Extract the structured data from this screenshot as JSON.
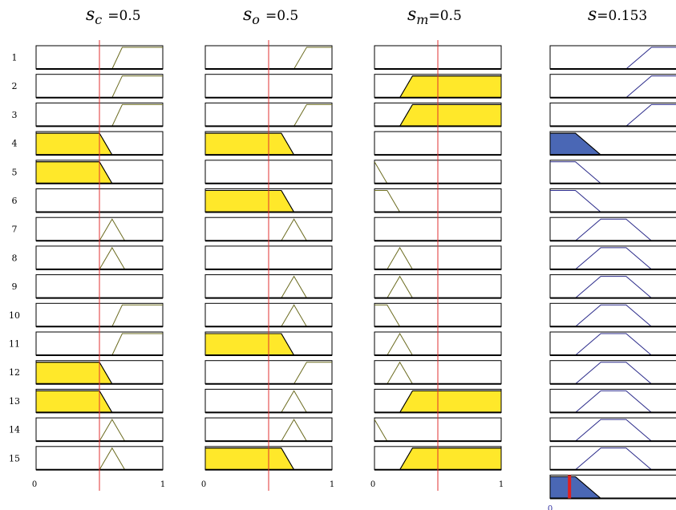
{
  "columns": [
    {
      "var": "s",
      "sub": "c",
      "eq": "=",
      "value": "0.5",
      "axis": [
        "0",
        "1"
      ],
      "axis_color": "#000000",
      "mf_color": "#6b6b1f",
      "fill": "#ffe82a",
      "active": true,
      "input": 0.5,
      "input_color": "#e03030",
      "rules": [
        {
          "shape": "rise",
          "a": 0.6,
          "b": 0.68
        },
        {
          "shape": "rise",
          "a": 0.6,
          "b": 0.68
        },
        {
          "shape": "rise",
          "a": 0.6,
          "b": 0.68
        },
        {
          "shape": "fall",
          "a": 0.5,
          "b": 0.6,
          "filled": true
        },
        {
          "shape": "fall",
          "a": 0.5,
          "b": 0.6,
          "filled": true
        },
        {
          "shape": "none"
        },
        {
          "shape": "tri",
          "a": 0.5,
          "b": 0.6,
          "c": 0.7
        },
        {
          "shape": "tri",
          "a": 0.5,
          "b": 0.6,
          "c": 0.7
        },
        {
          "shape": "none"
        },
        {
          "shape": "rise",
          "a": 0.6,
          "b": 0.68
        },
        {
          "shape": "rise",
          "a": 0.6,
          "b": 0.68
        },
        {
          "shape": "fall",
          "a": 0.5,
          "b": 0.6,
          "filled": true
        },
        {
          "shape": "fall",
          "a": 0.5,
          "b": 0.6,
          "filled": true
        },
        {
          "shape": "tri",
          "a": 0.5,
          "b": 0.6,
          "c": 0.7
        },
        {
          "shape": "tri",
          "a": 0.5,
          "b": 0.6,
          "c": 0.7
        }
      ]
    },
    {
      "var": "s",
      "sub": "o",
      "eq": "=",
      "value": "0.5",
      "axis": [
        "0",
        "1"
      ],
      "axis_color": "#000000",
      "mf_color": "#6b6b1f",
      "fill": "#ffe82a",
      "active": true,
      "input": 0.5,
      "input_color": "#e03030",
      "rules": [
        {
          "shape": "rise",
          "a": 0.7,
          "b": 0.8
        },
        {
          "shape": "none"
        },
        {
          "shape": "rise",
          "a": 0.7,
          "b": 0.8
        },
        {
          "shape": "fall",
          "a": 0.6,
          "b": 0.7,
          "filled": true
        },
        {
          "shape": "none"
        },
        {
          "shape": "fall",
          "a": 0.6,
          "b": 0.7,
          "filled": true
        },
        {
          "shape": "tri",
          "a": 0.6,
          "b": 0.7,
          "c": 0.8
        },
        {
          "shape": "none"
        },
        {
          "shape": "tri",
          "a": 0.6,
          "b": 0.7,
          "c": 0.8
        },
        {
          "shape": "tri",
          "a": 0.6,
          "b": 0.7,
          "c": 0.8
        },
        {
          "shape": "fall",
          "a": 0.6,
          "b": 0.7,
          "filled": true
        },
        {
          "shape": "rise",
          "a": 0.7,
          "b": 0.8
        },
        {
          "shape": "tri",
          "a": 0.6,
          "b": 0.7,
          "c": 0.8
        },
        {
          "shape": "tri",
          "a": 0.6,
          "b": 0.7,
          "c": 0.8
        },
        {
          "shape": "fall",
          "a": 0.6,
          "b": 0.7,
          "filled": true
        }
      ]
    },
    {
      "var": "s",
      "sub": "m",
      "eq": "=",
      "value": "0.5",
      "axis": [
        "0",
        "1"
      ],
      "axis_color": "#000000",
      "mf_color": "#6b6b1f",
      "fill": "#ffe82a",
      "active": true,
      "input": 0.5,
      "input_color": "#e03030",
      "rules": [
        {
          "shape": "none"
        },
        {
          "shape": "rise",
          "a": 0.2,
          "b": 0.3,
          "filled": true
        },
        {
          "shape": "rise",
          "a": 0.2,
          "b": 0.3,
          "filled": true
        },
        {
          "shape": "none"
        },
        {
          "shape": "fall",
          "a": 0.0,
          "b": 0.1
        },
        {
          "shape": "fall",
          "a": 0.1,
          "b": 0.2
        },
        {
          "shape": "none"
        },
        {
          "shape": "tri",
          "a": 0.1,
          "b": 0.2,
          "c": 0.3
        },
        {
          "shape": "tri",
          "a": 0.1,
          "b": 0.2,
          "c": 0.3
        },
        {
          "shape": "fall",
          "a": 0.1,
          "b": 0.2
        },
        {
          "shape": "tri",
          "a": 0.1,
          "b": 0.2,
          "c": 0.3
        },
        {
          "shape": "tri",
          "a": 0.1,
          "b": 0.2,
          "c": 0.3
        },
        {
          "shape": "rise",
          "a": 0.2,
          "b": 0.3,
          "filled": true
        },
        {
          "shape": "fall",
          "a": 0.0,
          "b": 0.1
        },
        {
          "shape": "rise",
          "a": 0.2,
          "b": 0.3,
          "filled": true
        }
      ]
    },
    {
      "var": "s",
      "sub": "",
      "eq": "=",
      "value": "0.153",
      "axis": [
        "0",
        ""
      ],
      "axis_color": "#3030a0",
      "mf_color": "#2a2a8a",
      "fill": "#4a67b5",
      "active": false,
      "input": 0.153,
      "input_color": "#e02020",
      "rules": [
        {
          "shape": "rise",
          "a": 0.6,
          "b": 0.8
        },
        {
          "shape": "rise",
          "a": 0.6,
          "b": 0.8
        },
        {
          "shape": "rise",
          "a": 0.6,
          "b": 0.8
        },
        {
          "shape": "fall",
          "a": 0.2,
          "b": 0.4,
          "filled": true
        },
        {
          "shape": "fall",
          "a": 0.2,
          "b": 0.4
        },
        {
          "shape": "fall",
          "a": 0.2,
          "b": 0.4
        },
        {
          "shape": "trap",
          "a": 0.2,
          "b": 0.4,
          "c": 0.6,
          "d": 0.8
        },
        {
          "shape": "trap",
          "a": 0.2,
          "b": 0.4,
          "c": 0.6,
          "d": 0.8
        },
        {
          "shape": "trap",
          "a": 0.2,
          "b": 0.4,
          "c": 0.6,
          "d": 0.8
        },
        {
          "shape": "trap",
          "a": 0.2,
          "b": 0.4,
          "c": 0.6,
          "d": 0.8
        },
        {
          "shape": "trap",
          "a": 0.2,
          "b": 0.4,
          "c": 0.6,
          "d": 0.8
        },
        {
          "shape": "trap",
          "a": 0.2,
          "b": 0.4,
          "c": 0.6,
          "d": 0.8
        },
        {
          "shape": "trap",
          "a": 0.2,
          "b": 0.4,
          "c": 0.6,
          "d": 0.8
        },
        {
          "shape": "trap",
          "a": 0.2,
          "b": 0.4,
          "c": 0.6,
          "d": 0.8
        },
        {
          "shape": "trap",
          "a": 0.2,
          "b": 0.4,
          "c": 0.6,
          "d": 0.8
        }
      ],
      "aggregate": {
        "shape": "fall",
        "a": 0.2,
        "b": 0.4,
        "filled": true
      }
    }
  ],
  "row_labels": [
    "1",
    "2",
    "3",
    "4",
    "5",
    "6",
    "7",
    "8",
    "9",
    "10",
    "11",
    "12",
    "13",
    "14",
    "15"
  ]
}
